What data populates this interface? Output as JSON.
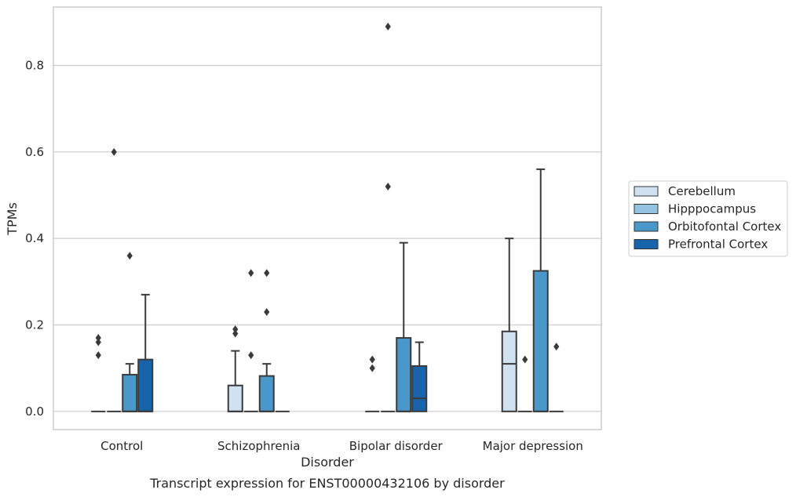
{
  "caption": "Transcript expression for ENST00000432106 by disorder",
  "chart_data": {
    "type": "boxplot",
    "title": "",
    "xlabel": "Disorder",
    "ylabel": "TPMs",
    "ylim": [
      -0.042,
      0.935
    ],
    "yticks": [
      0.0,
      0.2,
      0.4,
      0.6,
      0.8
    ],
    "ytick_labels": [
      "0.0",
      "0.2",
      "0.4",
      "0.6",
      "0.8"
    ],
    "grid": "horizontal",
    "legend_placement": "right",
    "categories": [
      "Control",
      "Schizophrenia",
      "Bipolar disorder",
      "Major depression"
    ],
    "series": [
      {
        "name": "Cerebellum",
        "color": "#d0e1f2",
        "boxes": [
          {
            "q1": 0,
            "median": 0,
            "q3": 0,
            "whisker_low": 0,
            "whisker_high": 0,
            "fliers": [
              0.13,
              0.16,
              0.17
            ]
          },
          {
            "q1": 0,
            "median": 0,
            "q3": 0.06,
            "whisker_low": 0,
            "whisker_high": 0.14,
            "fliers": [
              0.18,
              0.19
            ]
          },
          {
            "q1": 0,
            "median": 0,
            "q3": 0,
            "whisker_low": 0,
            "whisker_high": 0,
            "fliers": [
              0.1,
              0.12
            ]
          },
          {
            "q1": 0,
            "median": 0.11,
            "q3": 0.185,
            "whisker_low": 0,
            "whisker_high": 0.4,
            "fliers": []
          }
        ]
      },
      {
        "name": "Hipppocampus",
        "color": "#94c4df",
        "boxes": [
          {
            "q1": 0,
            "median": 0,
            "q3": 0,
            "whisker_low": 0,
            "whisker_high": 0,
            "fliers": [
              0.6
            ]
          },
          {
            "q1": 0,
            "median": 0,
            "q3": 0,
            "whisker_low": 0,
            "whisker_high": 0,
            "fliers": [
              0.13,
              0.32
            ]
          },
          {
            "q1": 0,
            "median": 0,
            "q3": 0,
            "whisker_low": 0,
            "whisker_high": 0,
            "fliers": [
              0.52,
              0.89
            ]
          },
          {
            "q1": 0,
            "median": 0,
            "q3": 0,
            "whisker_low": 0,
            "whisker_high": 0,
            "fliers": [
              0.12
            ]
          }
        ]
      },
      {
        "name": "Orbitofontal Cortex",
        "color": "#4a98c9",
        "boxes": [
          {
            "q1": 0,
            "median": 0,
            "q3": 0.085,
            "whisker_low": 0,
            "whisker_high": 0.11,
            "fliers": [
              0.36
            ]
          },
          {
            "q1": 0,
            "median": 0,
            "q3": 0.082,
            "whisker_low": 0,
            "whisker_high": 0.11,
            "fliers": [
              0.23,
              0.32
            ]
          },
          {
            "q1": 0,
            "median": 0,
            "q3": 0.17,
            "whisker_low": 0,
            "whisker_high": 0.39,
            "fliers": []
          },
          {
            "q1": 0,
            "median": 0,
            "q3": 0.325,
            "whisker_low": 0,
            "whisker_high": 0.56,
            "fliers": []
          }
        ]
      },
      {
        "name": "Prefrontal Cortex",
        "color": "#1764ab",
        "boxes": [
          {
            "q1": 0,
            "median": 0,
            "q3": 0.12,
            "whisker_low": 0,
            "whisker_high": 0.27,
            "fliers": []
          },
          {
            "q1": 0,
            "median": 0,
            "q3": 0,
            "whisker_low": 0,
            "whisker_high": 0,
            "fliers": []
          },
          {
            "q1": 0,
            "median": 0.03,
            "q3": 0.105,
            "whisker_low": 0,
            "whisker_high": 0.16,
            "fliers": []
          },
          {
            "q1": 0,
            "median": 0,
            "q3": 0,
            "whisker_low": 0,
            "whisker_high": 0,
            "fliers": [
              0.15
            ]
          }
        ]
      }
    ]
  }
}
